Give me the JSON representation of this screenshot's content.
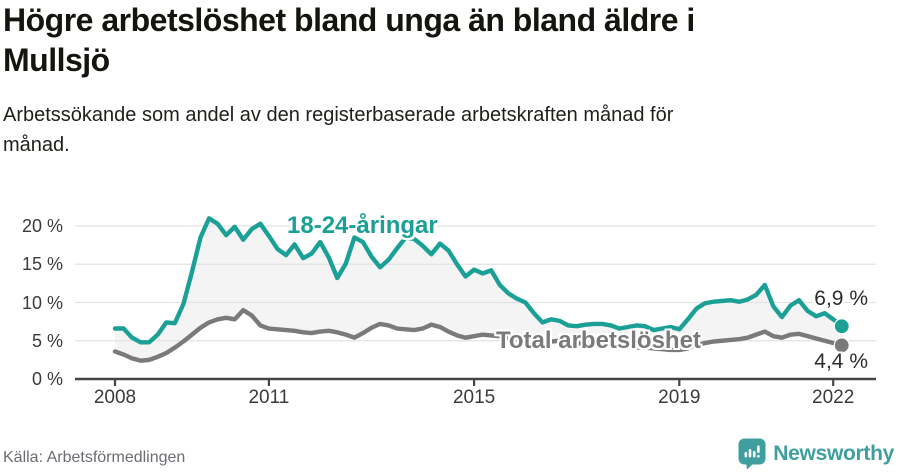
{
  "header": {
    "title_lines": [
      "Högre arbetslöshet bland unga än bland äldre i",
      "Mullsjö"
    ],
    "subtitle_lines": [
      "Arbetssökande som andel av den registerbaserade arbetskraften månad för",
      "månad."
    ]
  },
  "footer": {
    "source": "Källa: Arbetsförmedlingen",
    "brand": "Newsworthy"
  },
  "colors": {
    "young": "#1aa096",
    "total": "#7a7a7a",
    "area_fill": "#f4f4f4",
    "grid": "#e3e3e3",
    "axis": "#454545",
    "brand_teal": "#3f9f9f"
  },
  "chart_data": {
    "type": "line",
    "title": "Högre arbetslöshet bland unga än bland äldre i Mullsjö",
    "x_description": "Monthly values, Jan 2008 – Mar 2022 (one value every 2 months)",
    "x_start_year": 2008,
    "x_step_months": 2,
    "ylim": [
      0,
      22
    ],
    "grid": true,
    "x_ticks": [
      {
        "year": 2008,
        "label": "2008"
      },
      {
        "year": 2011,
        "label": "2011"
      },
      {
        "year": 2015,
        "label": "2015"
      },
      {
        "year": 2019,
        "label": "2019"
      },
      {
        "year": 2022,
        "label": "2022"
      }
    ],
    "y_ticks": [
      {
        "value": 0,
        "label": "0 %"
      },
      {
        "value": 5,
        "label": "5 %"
      },
      {
        "value": 10,
        "label": "10 %"
      },
      {
        "value": 15,
        "label": "15 %"
      },
      {
        "value": 20,
        "label": "20 %"
      }
    ],
    "series": [
      {
        "name": "18-24-åringar",
        "color_key": "young",
        "end_label": "6,9 %",
        "values": [
          6.6,
          6.6,
          5.4,
          4.8,
          4.8,
          5.8,
          7.4,
          7.3,
          9.8,
          14.0,
          18.5,
          21.0,
          20.3,
          18.8,
          19.9,
          18.2,
          19.6,
          20.3,
          18.7,
          17.0,
          16.2,
          17.6,
          15.8,
          16.4,
          17.9,
          15.9,
          13.2,
          15.1,
          18.5,
          17.9,
          16.0,
          14.6,
          15.6,
          17.1,
          18.5,
          18.3,
          17.4,
          16.3,
          17.7,
          16.8,
          15.0,
          13.4,
          14.3,
          13.8,
          14.2,
          12.3,
          11.2,
          10.5,
          10.0,
          8.6,
          7.4,
          7.8,
          7.6,
          7.0,
          6.9,
          7.1,
          7.2,
          7.2,
          7.0,
          6.6,
          6.8,
          7.0,
          6.9,
          6.4,
          6.6,
          6.8,
          6.5,
          7.8,
          9.2,
          9.9,
          10.1,
          10.2,
          10.3,
          10.1,
          10.4,
          11.0,
          12.3,
          9.5,
          8.1,
          9.6,
          10.3,
          8.9,
          8.2,
          8.6,
          7.8,
          6.9
        ]
      },
      {
        "name": "Total arbetslöshet",
        "color_key": "total",
        "end_label": "4,4 %",
        "values": [
          3.6,
          3.2,
          2.7,
          2.4,
          2.5,
          2.9,
          3.4,
          4.1,
          4.9,
          5.8,
          6.7,
          7.4,
          7.8,
          8.0,
          7.8,
          9.0,
          8.3,
          7.0,
          6.6,
          6.5,
          6.4,
          6.3,
          6.1,
          6.0,
          6.2,
          6.3,
          6.1,
          5.8,
          5.4,
          6.0,
          6.7,
          7.2,
          7.0,
          6.6,
          6.5,
          6.4,
          6.6,
          7.1,
          6.8,
          6.2,
          5.7,
          5.4,
          5.6,
          5.8,
          5.7,
          5.6,
          5.4,
          5.2,
          4.9,
          4.8,
          4.8,
          4.9,
          5.0,
          4.9,
          4.7,
          4.6,
          4.5,
          4.4,
          4.4,
          4.3,
          4.2,
          4.1,
          4.1,
          4.0,
          3.9,
          3.8,
          3.8,
          4.0,
          4.4,
          4.7,
          4.9,
          5.0,
          5.1,
          5.2,
          5.4,
          5.8,
          6.2,
          5.6,
          5.4,
          5.8,
          5.9,
          5.6,
          5.3,
          5.0,
          4.7,
          4.4
        ]
      }
    ]
  }
}
